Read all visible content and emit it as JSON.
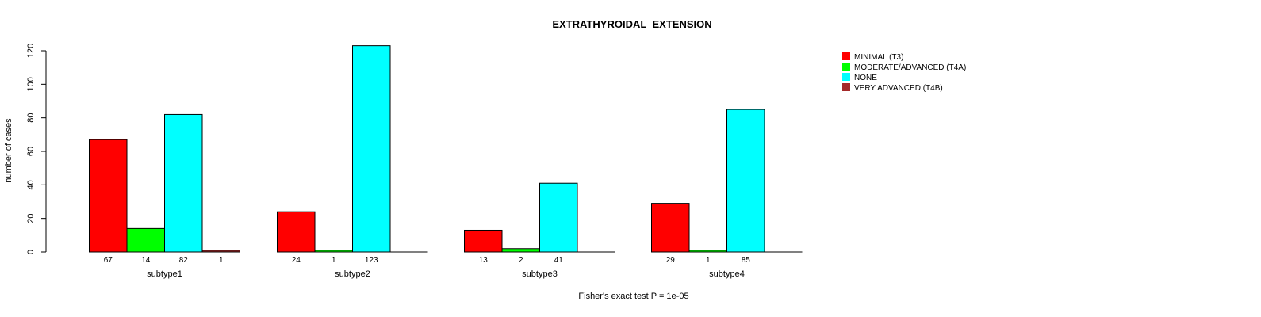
{
  "chart_data": {
    "type": "bar",
    "title": "EXTRATHYROIDAL_EXTENSION",
    "xlabel": "",
    "ylabel": "number of cases",
    "footnote": "Fisher's exact test P = 1e-05",
    "ylim": [
      0,
      120
    ],
    "yticks": [
      0,
      20,
      40,
      60,
      80,
      100,
      120
    ],
    "legend_position": "top-right",
    "categories": [
      "subtype1",
      "subtype2",
      "subtype3",
      "subtype4"
    ],
    "series": [
      {
        "name": "MINIMAL (T3)",
        "color": "#ff0000",
        "values": [
          67,
          24,
          13,
          29
        ]
      },
      {
        "name": "MODERATE/ADVANCED (T4A)",
        "color": "#00ff00",
        "values": [
          14,
          1,
          2,
          1
        ]
      },
      {
        "name": "NONE",
        "color": "#00ffff",
        "values": [
          82,
          123,
          41,
          85
        ]
      },
      {
        "name": "VERY ADVANCED (T4B)",
        "color": "#a52a2a",
        "values": [
          1,
          null,
          null,
          null
        ]
      }
    ]
  }
}
